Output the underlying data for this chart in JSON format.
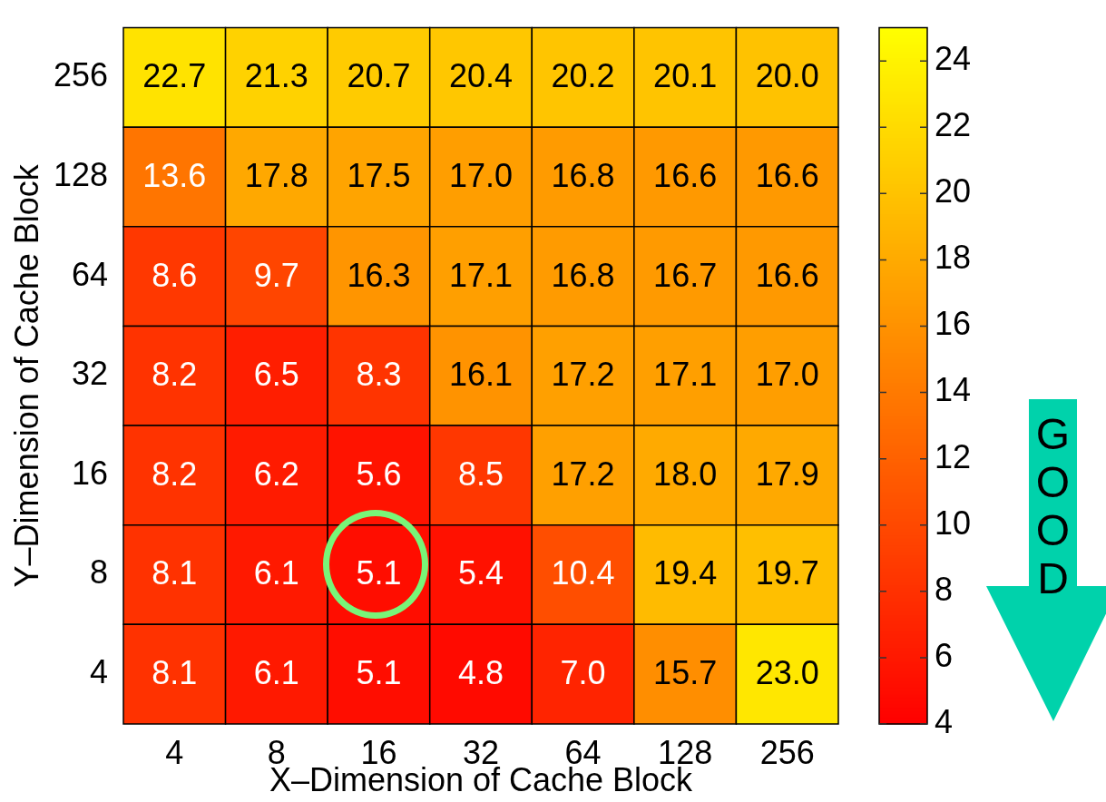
{
  "chart_data": {
    "type": "heatmap",
    "xlabel": "X–Dimension of Cache Block",
    "ylabel": "Y–Dimension of Cache Block",
    "categories": [
      "4",
      "8",
      "16",
      "32",
      "64",
      "128",
      "256"
    ],
    "y_categories": [
      "256",
      "128",
      "64",
      "32",
      "16",
      "8",
      "4"
    ],
    "cells": [
      [
        22.7,
        21.3,
        20.7,
        20.4,
        20.2,
        20.1,
        20.0
      ],
      [
        13.6,
        17.8,
        17.5,
        17.0,
        16.8,
        16.6,
        16.6
      ],
      [
        8.6,
        9.7,
        16.3,
        17.1,
        16.8,
        16.7,
        16.6
      ],
      [
        8.2,
        6.5,
        8.3,
        16.1,
        17.2,
        17.1,
        17.0
      ],
      [
        8.2,
        6.2,
        5.6,
        8.5,
        17.2,
        18.0,
        17.9
      ],
      [
        8.1,
        6.1,
        5.1,
        5.4,
        10.4,
        19.4,
        19.7
      ],
      [
        8.1,
        6.1,
        5.1,
        4.8,
        7.0,
        15.7,
        23.0
      ]
    ],
    "cell_labels": [
      [
        "22.7",
        "21.3",
        "20.7",
        "20.4",
        "20.2",
        "20.1",
        "20.0"
      ],
      [
        "13.6",
        "17.8",
        "17.5",
        "17.0",
        "16.8",
        "16.6",
        "16.6"
      ],
      [
        "8.6",
        "9.7",
        "16.3",
        "17.1",
        "16.8",
        "16.7",
        "16.6"
      ],
      [
        "8.2",
        "6.5",
        "8.3",
        "16.1",
        "17.2",
        "17.1",
        "17.0"
      ],
      [
        "8.2",
        "6.2",
        "5.6",
        "8.5",
        "17.2",
        "18.0",
        "17.9"
      ],
      [
        "8.1",
        "6.1",
        "5.1",
        "5.4",
        "10.4",
        "19.4",
        "19.7"
      ],
      [
        "8.1",
        "6.1",
        "5.1",
        "4.8",
        "7.0",
        "15.7",
        "23.0"
      ]
    ],
    "clim": [
      4,
      25
    ],
    "cticks": [
      4,
      6,
      8,
      10,
      12,
      14,
      16,
      18,
      20,
      22,
      24
    ],
    "annotations": [
      "GOOD"
    ]
  }
}
